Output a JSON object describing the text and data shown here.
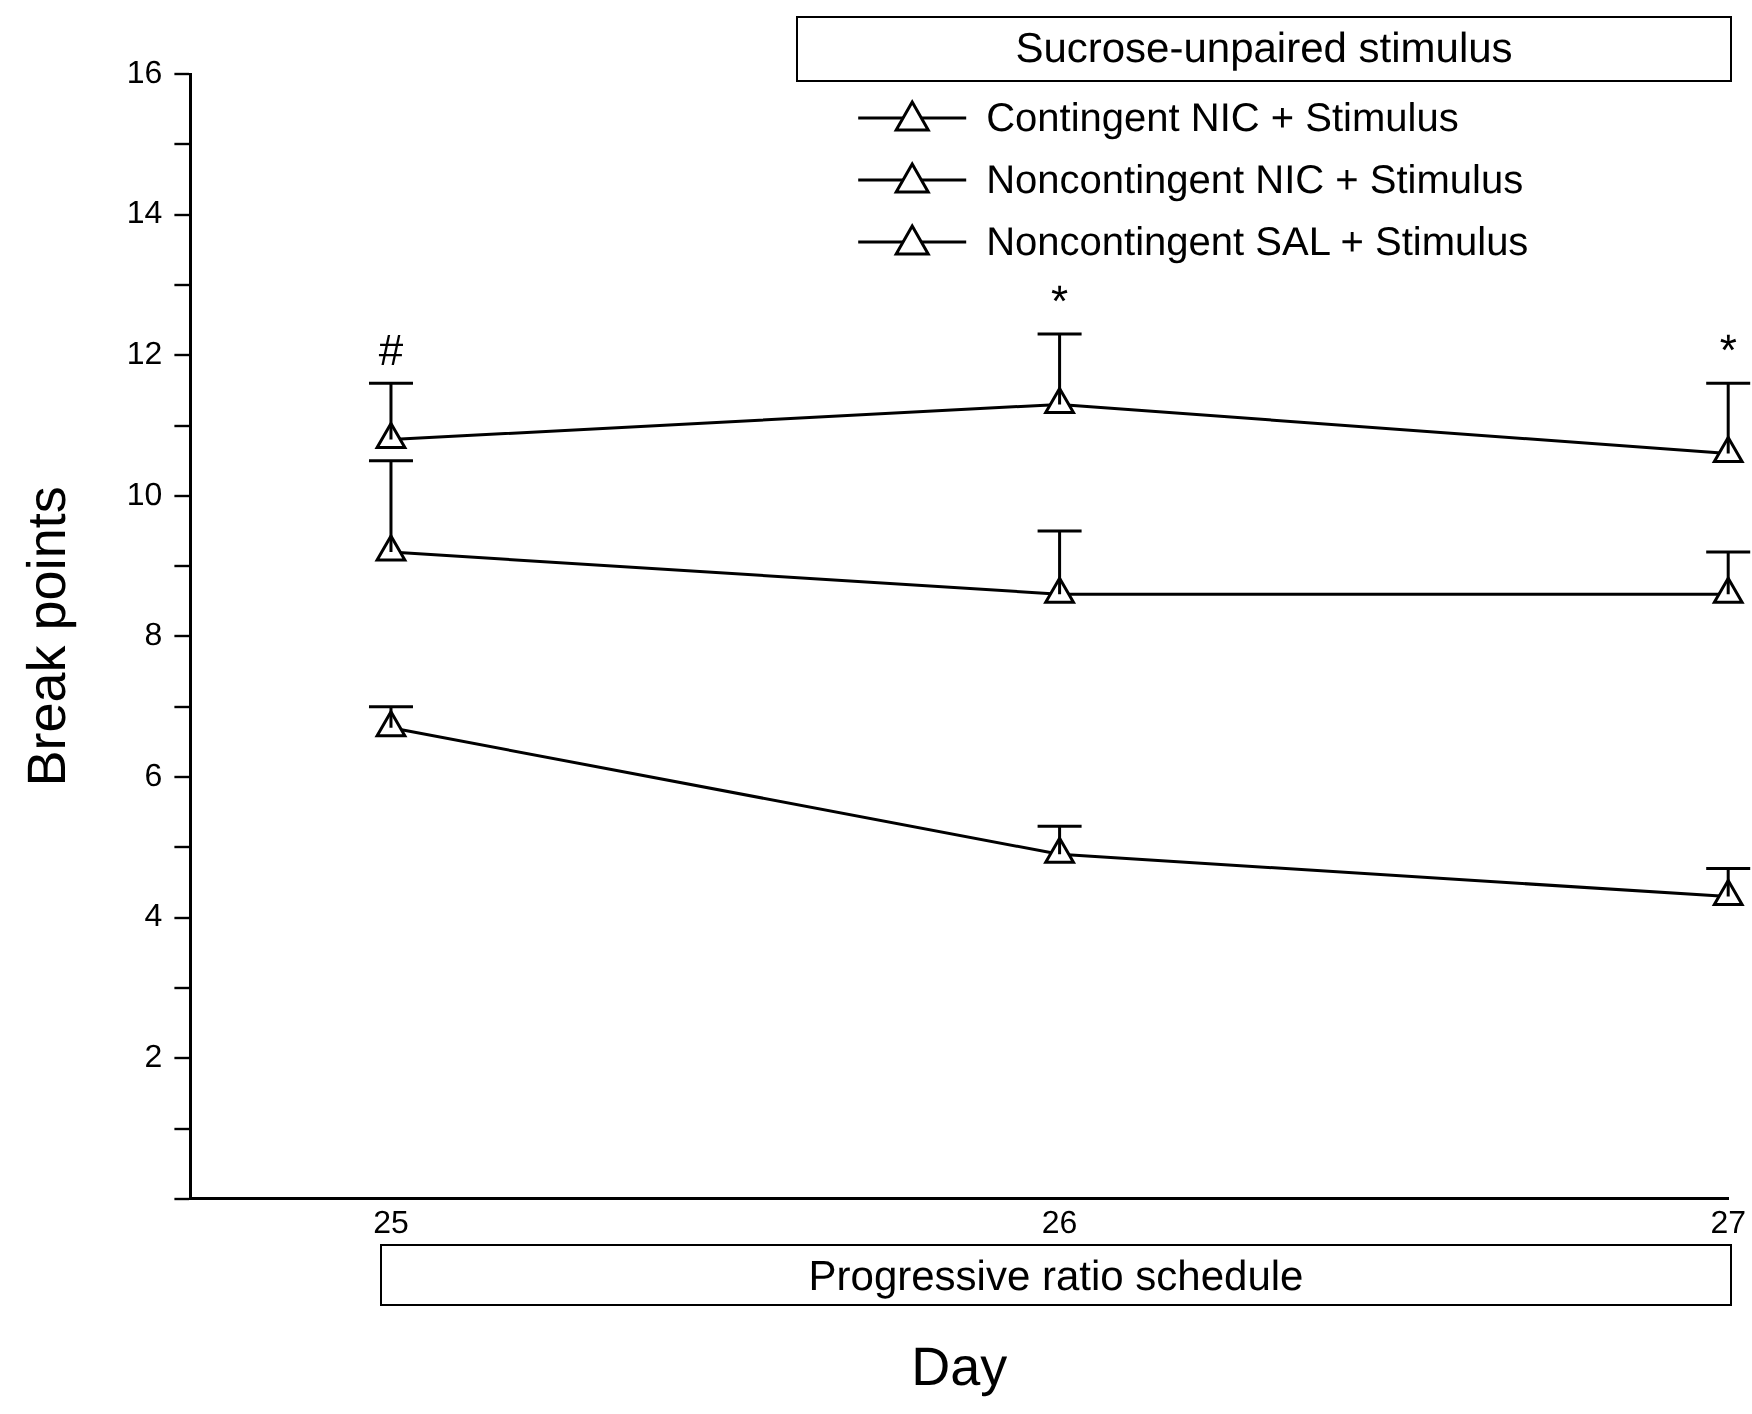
{
  "chart_data": {
    "type": "line",
    "title": "Sucrose-unpaired stimulus",
    "xlabel": "Day",
    "ylabel": "Break points",
    "x": [
      25,
      26,
      27
    ],
    "xlim": [
      24.7,
      27
    ],
    "xticks": [
      25,
      26,
      27
    ],
    "ylim": [
      0,
      16
    ],
    "yticks": [
      {
        "value": 0,
        "label": null
      },
      {
        "value": 1,
        "label": null
      },
      2,
      {
        "value": 3,
        "label": null
      },
      4,
      {
        "value": 5,
        "label": null
      },
      6,
      {
        "value": 7,
        "label": null
      },
      8,
      {
        "value": 9,
        "label": null
      },
      10,
      {
        "value": 11,
        "label": null
      },
      12,
      {
        "value": 13,
        "label": null
      },
      14,
      {
        "value": 15,
        "label": null
      },
      16
    ],
    "series": [
      {
        "name": "Contingent NIC + Stimulus",
        "color": "#000000",
        "values": [
          10.8,
          11.3,
          10.6
        ],
        "errors": [
          [
            10.8,
            11.6
          ],
          [
            11.3,
            12.3
          ],
          [
            10.6,
            11.6
          ]
        ]
      },
      {
        "name": "Noncontingent NIC + Stimulus",
        "color": "#000000",
        "values": [
          9.2,
          8.6,
          8.6
        ],
        "errors": [
          [
            9.2,
            10.5
          ],
          [
            8.6,
            9.5
          ],
          [
            8.6,
            9.2
          ]
        ]
      },
      {
        "name": "Noncontingent SAL + Stimulus",
        "color": "#000000",
        "values": [
          6.7,
          4.9,
          4.3
        ],
        "errors": [
          [
            6.7,
            7.0
          ],
          [
            4.9,
            5.3
          ],
          [
            4.3,
            4.7
          ]
        ]
      }
    ],
    "annotations": [
      "#",
      "*",
      "*",
      "Progressive ratio schedule"
    ],
    "grid": false,
    "legend": "top right",
    "marker": "triangle",
    "line_style": "solid"
  }
}
